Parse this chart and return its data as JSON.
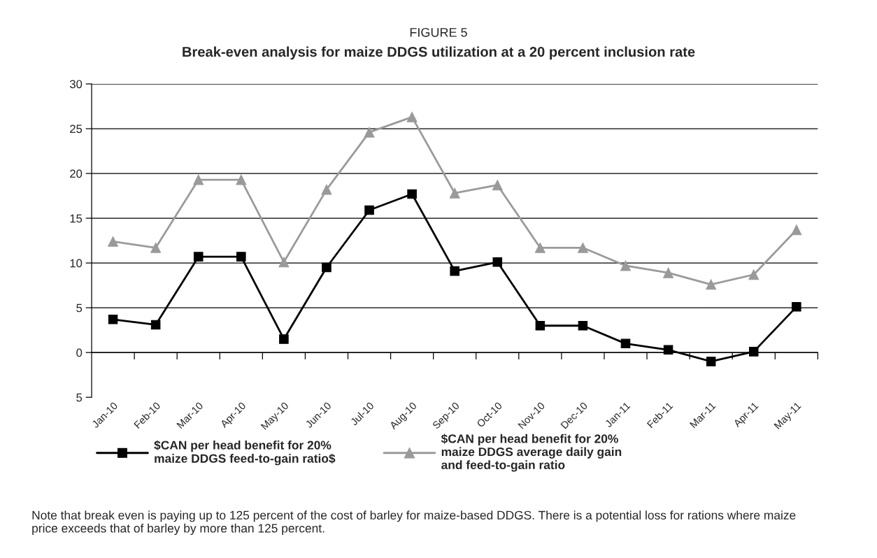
{
  "chart_data": {
    "type": "line",
    "title": "FIGURE 5",
    "subtitle": "Break-even analysis for maize DDGS utilization at a 20 percent inclusion rate",
    "categories": [
      "Jan-10",
      "Feb-10",
      "Mar-10",
      "Apr-10",
      "May-10",
      "Jun-10",
      "Jul-10",
      "Aug-10",
      "Sep-10",
      "Oct-10",
      "Nov-10",
      "Dec-10",
      "Jan-11",
      "Feb-11",
      "Mar-11",
      "Apr-11",
      "May-11"
    ],
    "series": [
      {
        "name": "$CAN per head benefit for 20%\nmaize DDGS feed-to-gain ratio$",
        "color": "#000000",
        "marker": "square",
        "values": [
          3.7,
          3.1,
          10.7,
          10.7,
          1.5,
          9.5,
          15.9,
          17.7,
          9.1,
          10.1,
          3.0,
          3.0,
          1.0,
          0.3,
          -1.0,
          0.1,
          5.1
        ]
      },
      {
        "name": "$CAN per head benefit for 20%\nmaize DDGS average daily gain\nand feed-to-gain ratio",
        "color": "#9a9a9c",
        "marker": "triangle",
        "values": [
          12.4,
          11.7,
          19.3,
          19.3,
          10.1,
          18.2,
          24.6,
          26.3,
          17.8,
          18.7,
          11.7,
          11.7,
          9.7,
          8.9,
          7.6,
          8.7,
          13.7
        ]
      }
    ],
    "ylim": [
      -5,
      30
    ],
    "yticks": [
      {
        "value": -5,
        "label": "5"
      },
      0,
      5,
      10,
      15,
      20,
      25,
      30
    ],
    "grid": "y",
    "legend": "bottom",
    "line_style": "solid",
    "annotations": [
      "Note that break even is paying up to 125 percent of the cost of barley for maize-based DDGS. There is a potential loss for rations where maize price exceeds that of barley by more than 125 percent."
    ]
  }
}
